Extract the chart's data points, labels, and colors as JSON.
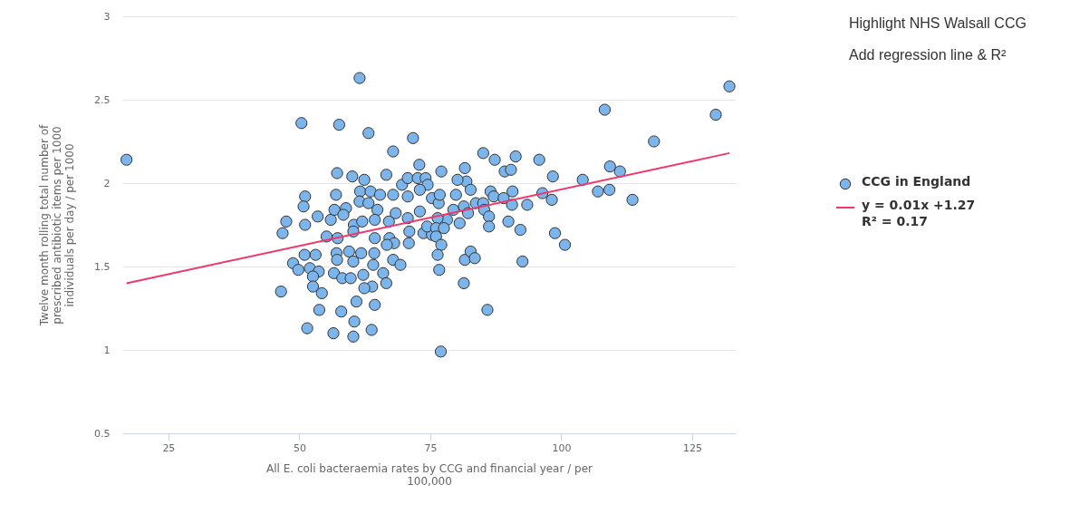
{
  "chart_data": {
    "type": "scatter",
    "xlabel": "All E. coli bacteraemia rates by CCG and financial year / per 100,000",
    "ylabel": "Twelve month rolling total number of prescribed antibiotic items per 1000 individuals per day / per 1000",
    "xlim": [
      16.2,
      133.3
    ],
    "xticks": [
      25,
      50,
      75,
      100,
      125
    ],
    "ylim": [
      0.5,
      3
    ],
    "yticks": [
      0.5,
      1,
      1.5,
      2,
      2.5,
      3
    ],
    "grid": "y",
    "legend": "right",
    "annotations": [
      "Highlight NHS Walsall CCG",
      "Add regression line & R²"
    ],
    "series": [
      {
        "name": "CCG in England",
        "marker": "circle",
        "color": "#7cb5ec",
        "x": [
          61.5,
          50.4,
          57.6,
          63.2,
          71.7,
          67.9,
          72.9,
          57.2,
          60.1,
          62.4,
          66.6,
          69.6,
          70.7,
          72.6,
          74.1,
          74.5,
          77.1,
          51.1,
          50.8,
          57.0,
          61.6,
          63.6,
          65.4,
          67.9,
          70.7,
          73.0,
          75.3,
          76.6,
          47.5,
          46.8,
          51.1,
          53.5,
          56.0,
          56.7,
          58.9,
          58.4,
          60.4,
          61.5,
          63.2,
          64.9,
          64.4,
          67.1,
          68.4,
          70.7,
          73.0,
          71.0,
          73.7,
          55.2,
          57.3,
          60.3,
          62.0,
          64.4,
          67.2,
          68.1,
          70.9,
          66.7,
          51.0,
          53.1,
          48.8,
          49.8,
          52.0,
          53.7,
          52.6,
          57.1,
          57.2,
          59.5,
          60.3,
          61.8,
          64.3,
          64.1,
          67.9,
          69.3,
          56.6,
          58.2,
          59.8,
          62.2,
          66.0,
          66.6,
          63.9,
          62.4,
          52.6,
          54.3,
          46.5,
          60.9,
          64.4,
          53.8,
          58.0,
          60.5,
          51.5,
          56.5,
          60.3,
          63.8,
          77.0,
          75.3,
          74.4,
          108.3,
          85.1,
          87.3,
          91.3,
          95.8,
          81.6,
          81.9,
          80.2,
          89.2,
          90.4,
          98.4,
          104.1,
          109.3,
          107.0,
          109.2,
          76.8,
          79.9,
          82.7,
          86.5,
          87.1,
          89.0,
          90.7,
          90.6,
          93.5,
          96.4,
          98.2,
          83.7,
          85.1,
          81.4,
          79.4,
          82.2,
          85.3,
          86.2,
          78.2,
          80.6,
          76.4,
          76.1,
          77.6,
          86.2,
          89.9,
          92.2,
          76.1,
          77.1,
          76.4,
          76.7,
          81.6,
          82.7,
          83.5,
          98.8,
          100.7,
          92.6,
          81.4,
          85.9,
          17.0,
          113.6,
          111.2,
          117.7,
          129.5,
          132.1
        ],
        "values": [
          2.63,
          2.36,
          2.35,
          2.3,
          2.27,
          2.19,
          2.11,
          2.06,
          2.04,
          2.02,
          2.05,
          1.99,
          2.03,
          2.03,
          2.03,
          1.99,
          2.07,
          1.92,
          1.86,
          1.93,
          1.95,
          1.95,
          1.93,
          1.93,
          1.92,
          1.96,
          1.91,
          1.88,
          1.77,
          1.7,
          1.75,
          1.8,
          1.78,
          1.84,
          1.85,
          1.81,
          1.75,
          1.89,
          1.88,
          1.84,
          1.78,
          1.77,
          1.82,
          1.79,
          1.83,
          1.71,
          1.7,
          1.68,
          1.67,
          1.71,
          1.77,
          1.67,
          1.67,
          1.64,
          1.64,
          1.63,
          1.57,
          1.57,
          1.52,
          1.48,
          1.49,
          1.47,
          1.44,
          1.58,
          1.54,
          1.59,
          1.53,
          1.58,
          1.58,
          1.51,
          1.54,
          1.51,
          1.46,
          1.43,
          1.43,
          1.45,
          1.46,
          1.4,
          1.38,
          1.37,
          1.38,
          1.34,
          1.35,
          1.29,
          1.27,
          1.24,
          1.23,
          1.17,
          1.13,
          1.1,
          1.08,
          1.12,
          0.99,
          1.69,
          1.74,
          2.44,
          2.18,
          2.14,
          2.16,
          2.14,
          2.09,
          2.01,
          2.02,
          2.07,
          2.08,
          2.04,
          2.02,
          2.1,
          1.95,
          1.96,
          1.93,
          1.93,
          1.96,
          1.95,
          1.92,
          1.91,
          1.95,
          1.87,
          1.87,
          1.94,
          1.9,
          1.88,
          1.88,
          1.86,
          1.84,
          1.82,
          1.84,
          1.8,
          1.78,
          1.76,
          1.79,
          1.73,
          1.73,
          1.74,
          1.77,
          1.72,
          1.68,
          1.63,
          1.57,
          1.48,
          1.54,
          1.59,
          1.55,
          1.7,
          1.63,
          1.53,
          1.4,
          1.24,
          2.14,
          1.9,
          2.07,
          2.25,
          2.41,
          2.58
        ]
      },
      {
        "name": "y = 0.01x +1.27\nR² = 0.17",
        "type": "line",
        "line_style": "solid",
        "marker": "none",
        "color": "#f0386b",
        "x": [
          17.0,
          132.1
        ],
        "values": [
          1.4,
          2.18
        ]
      }
    ]
  }
}
